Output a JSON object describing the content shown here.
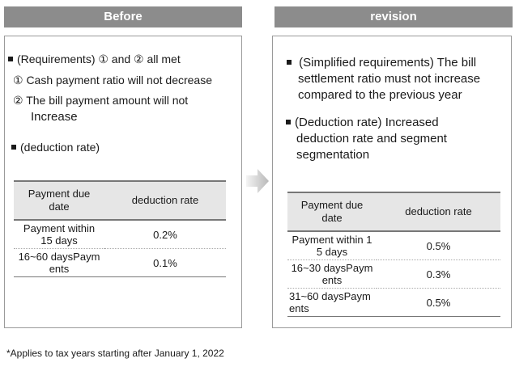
{
  "before": {
    "header": "Before",
    "req_line": "(Requirements) ① and  ②  all met",
    "item1": "① Cash payment ratio will not decrease",
    "item2_line1": "②  The bill payment amount will not",
    "item2_line2": "Increase",
    "deduction_heading": "(deduction rate)",
    "table": {
      "col1": [
        "Payment due",
        "date"
      ],
      "col2": "deduction rate",
      "rows": [
        {
          "term": [
            "Payment within",
            "15 days"
          ],
          "rate": "0.2%"
        },
        {
          "term": [
            "16~60 daysPaym",
            "ents"
          ],
          "rate": "0.1%"
        }
      ]
    }
  },
  "revision": {
    "header": "revision",
    "simplified": [
      "(Simplified requirements) The bill",
      "settlement ratio must not increase",
      "compared to the previous year"
    ],
    "deduction": [
      "(Deduction rate) Increased",
      "deduction rate and segment",
      "segmentation"
    ],
    "table": {
      "col1": [
        "Payment due",
        "date"
      ],
      "col2": "deduction rate",
      "rows": [
        {
          "term": [
            "Payment within 1",
            "5 days"
          ],
          "rate": "0.5%"
        },
        {
          "term": [
            "16~30 daysPaym",
            "ents"
          ],
          "rate": "0.3%"
        },
        {
          "term": [
            "31~60 daysPaym",
            "ents"
          ],
          "rate": "0.5%"
        }
      ]
    }
  },
  "footnote": "*Applies to tax years starting after January 1, 2022"
}
